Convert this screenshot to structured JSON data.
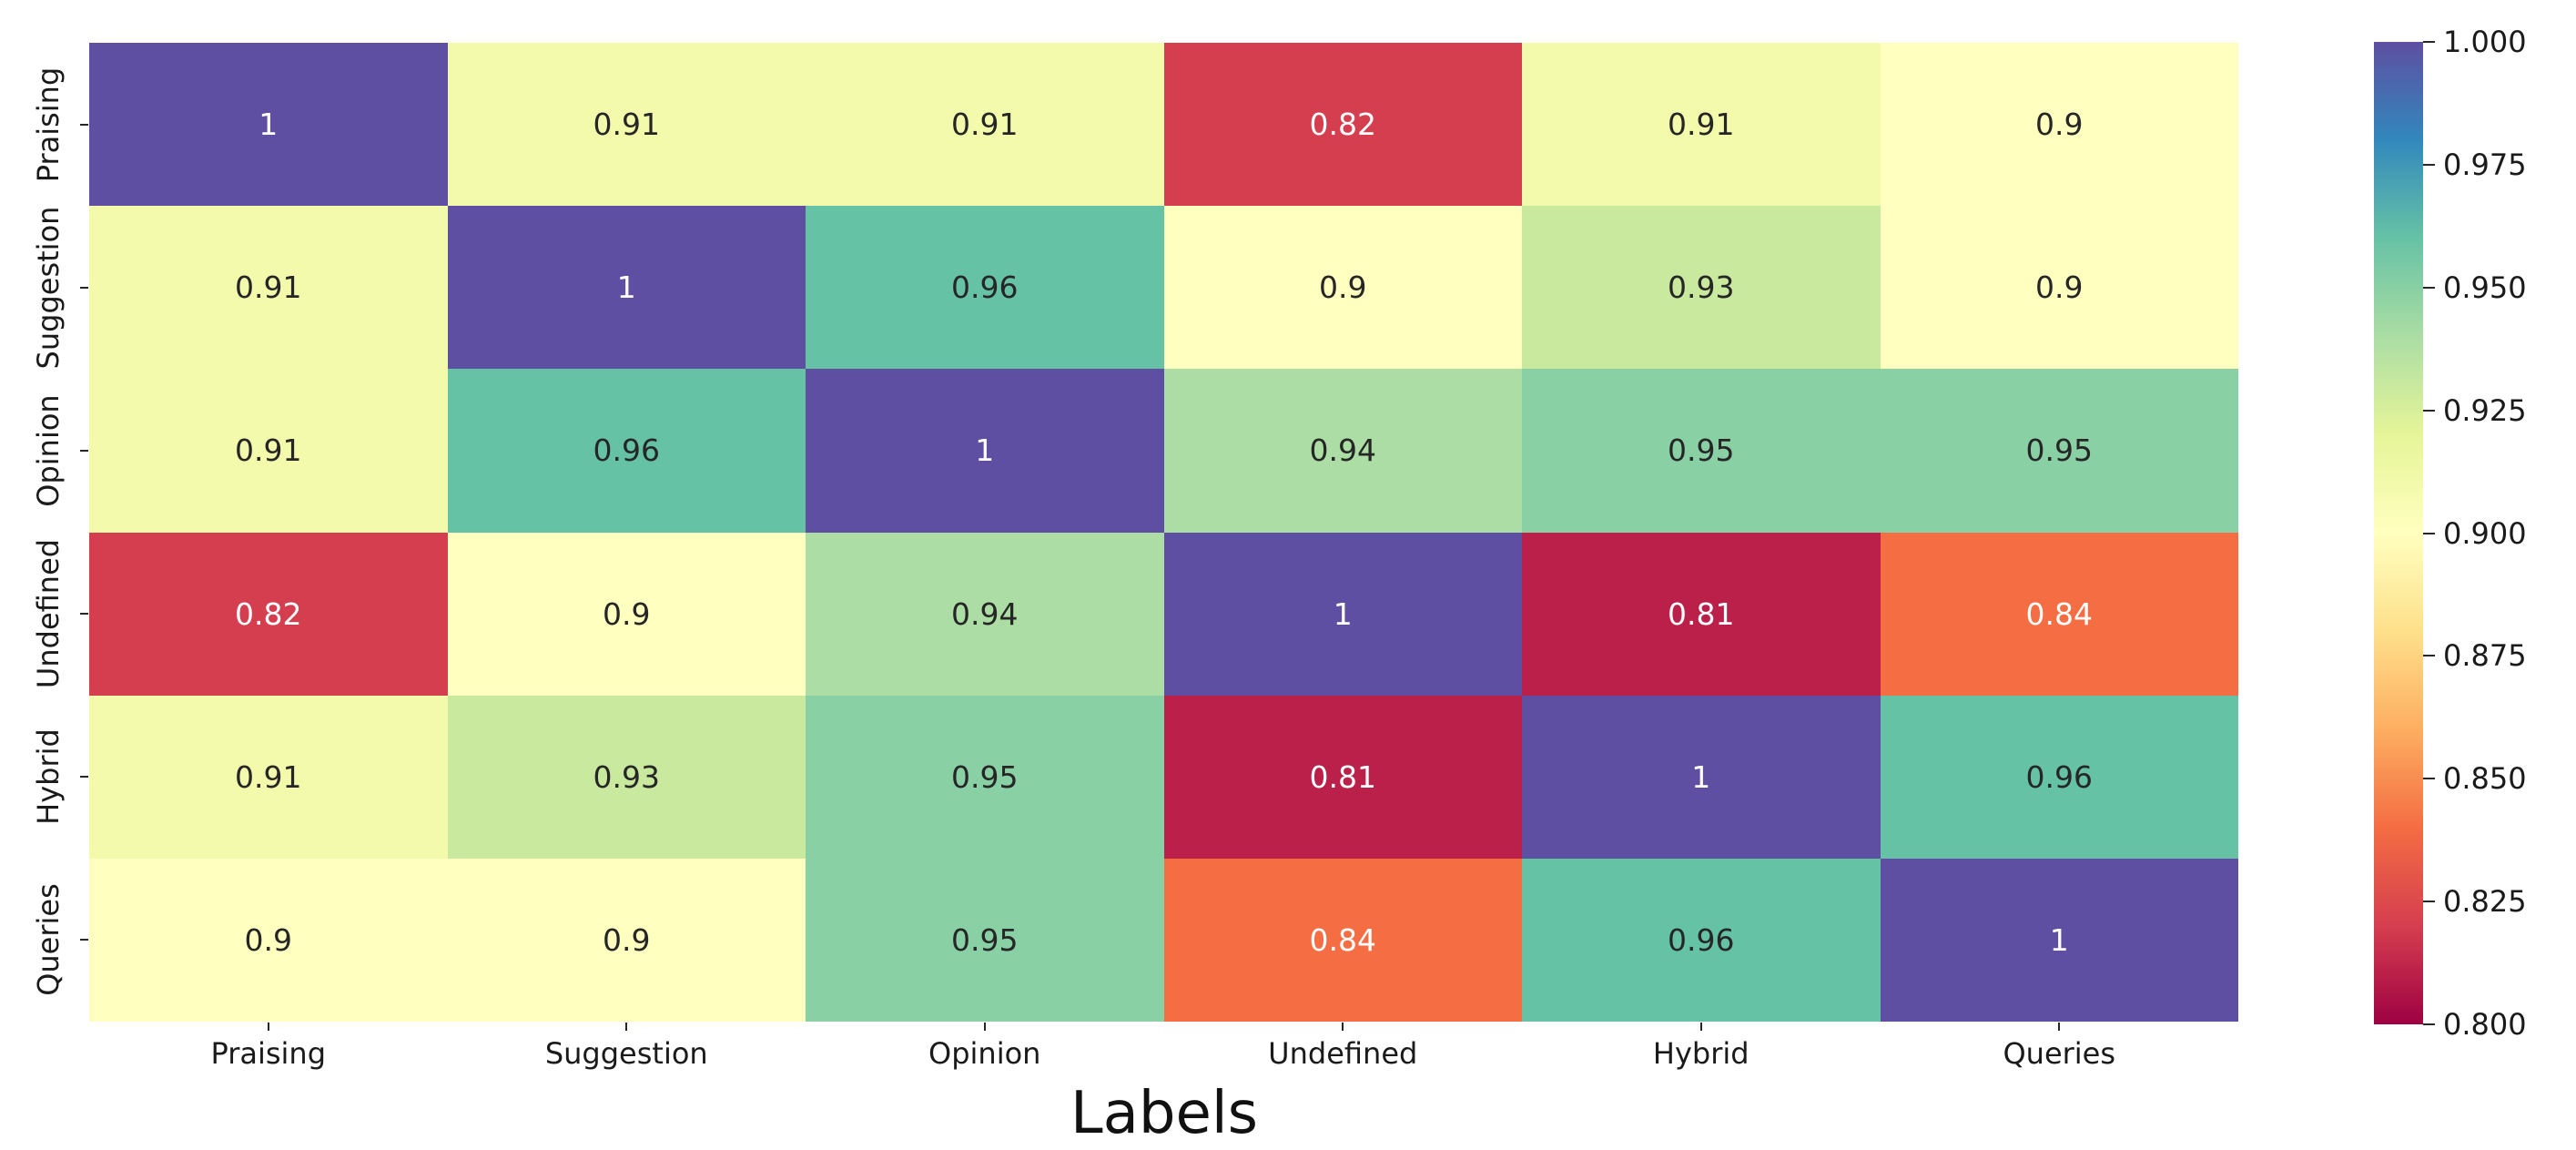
{
  "chart_data": {
    "type": "heatmap",
    "title": "",
    "xlabel": "Labels",
    "ylabel": "",
    "categories": [
      "Praising",
      "Suggestion",
      "Opinion",
      "Undefined",
      "Hybrid",
      "Queries"
    ],
    "matrix": [
      [
        1,
        0.91,
        0.91,
        0.82,
        0.91,
        0.9
      ],
      [
        0.91,
        1,
        0.96,
        0.9,
        0.93,
        0.9
      ],
      [
        0.91,
        0.96,
        1,
        0.94,
        0.95,
        0.95
      ],
      [
        0.82,
        0.9,
        0.94,
        1,
        0.81,
        0.84
      ],
      [
        0.91,
        0.93,
        0.95,
        0.81,
        1,
        0.96
      ],
      [
        0.9,
        0.9,
        0.95,
        0.84,
        0.96,
        1
      ]
    ],
    "vmin": 0.8,
    "vmax": 1.0,
    "colormap": {
      "name": "Spectral",
      "anchors": [
        "#9e0142",
        "#d53e4f",
        "#f46d43",
        "#fdae61",
        "#fee08b",
        "#ffffbf",
        "#e6f598",
        "#abdda4",
        "#66c2a5",
        "#3288bd",
        "#5e4fa2"
      ]
    },
    "colorbar_tick_labels": [
      "1.000",
      "0.975",
      "0.950",
      "0.925",
      "0.900",
      "0.875",
      "0.850",
      "0.825",
      "0.800"
    ],
    "annotation_colors": {
      "light": "#ffffff",
      "dark": "#262626"
    },
    "legend_position": "right-colorbar",
    "grid": false
  }
}
